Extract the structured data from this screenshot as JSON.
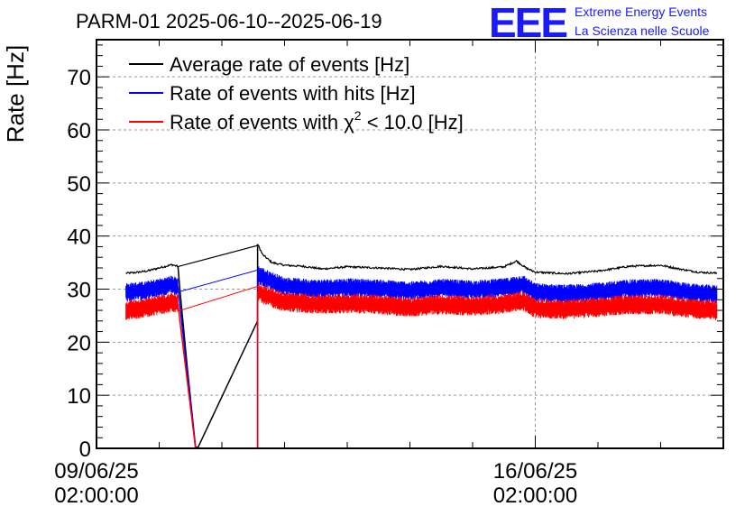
{
  "chart_data": {
    "type": "line",
    "title": "PARM-01 2025-06-10--2025-06-19",
    "xlabel": "",
    "ylabel": "Rate [Hz]",
    "ylim": [
      0,
      77
    ],
    "yticks": [
      0,
      10,
      20,
      30,
      40,
      50,
      60,
      70
    ],
    "ytick_labels": [
      "0",
      "10",
      "20",
      "30",
      "40",
      "50",
      "60",
      "70"
    ],
    "xlim_days": [
      0,
      10
    ],
    "xticks": [
      {
        "day": 0,
        "date": "09/06/25",
        "time": "02:00:00"
      },
      {
        "day": 7,
        "date": "16/06/25",
        "time": "02:00:00"
      }
    ],
    "grid": true,
    "legend_position": "top-left",
    "series": [
      {
        "name": "Average rate of events [Hz]",
        "color": "#000000",
        "style": "smooth",
        "points": [
          [
            0.47,
            33.0
          ],
          [
            0.6,
            33.1
          ],
          [
            0.8,
            33.4
          ],
          [
            1.0,
            34.0
          ],
          [
            1.2,
            34.6
          ],
          [
            1.3,
            34.3
          ],
          [
            1.33,
            30.0
          ],
          [
            1.45,
            15.0
          ],
          [
            1.58,
            0.2
          ],
          [
            1.62,
            0.2
          ],
          [
            2.57,
            24.0
          ],
          [
            2.57,
            38.5
          ],
          [
            2.65,
            36.5
          ],
          [
            2.8,
            35.0
          ],
          [
            3.0,
            34.5
          ],
          [
            3.3,
            34.3
          ],
          [
            3.6,
            33.8
          ],
          [
            4.0,
            34.2
          ],
          [
            4.5,
            34.0
          ],
          [
            5.0,
            33.7
          ],
          [
            5.5,
            34.3
          ],
          [
            6.0,
            33.8
          ],
          [
            6.5,
            34.2
          ],
          [
            6.7,
            35.3
          ],
          [
            6.85,
            34.0
          ],
          [
            7.0,
            33.2
          ],
          [
            7.5,
            32.9
          ],
          [
            8.0,
            33.4
          ],
          [
            8.5,
            34.3
          ],
          [
            9.0,
            34.5
          ],
          [
            9.3,
            33.8
          ],
          [
            9.6,
            33.2
          ],
          [
            9.9,
            33.0
          ]
        ]
      },
      {
        "name": "Rate of events with hits [Hz]",
        "color": "#0000ff",
        "style": "band",
        "points": [
          [
            0.47,
            29.4
          ],
          [
            0.8,
            29.8
          ],
          [
            1.0,
            30.3
          ],
          [
            1.2,
            30.8
          ],
          [
            1.3,
            30.5
          ],
          [
            1.33,
            27.0
          ],
          [
            1.58,
            0.0
          ],
          [
            2.57,
            0.0
          ],
          [
            2.57,
            32.8
          ],
          [
            2.7,
            32.0
          ],
          [
            3.0,
            30.5
          ],
          [
            3.5,
            30.1
          ],
          [
            4.0,
            30.3
          ],
          [
            4.5,
            30.1
          ],
          [
            5.0,
            29.7
          ],
          [
            5.5,
            30.2
          ],
          [
            6.0,
            29.9
          ],
          [
            6.5,
            30.3
          ],
          [
            6.8,
            31.0
          ],
          [
            7.0,
            29.4
          ],
          [
            7.5,
            29.1
          ],
          [
            8.0,
            29.5
          ],
          [
            8.5,
            30.1
          ],
          [
            9.0,
            30.2
          ],
          [
            9.5,
            29.3
          ],
          [
            9.9,
            29.0
          ]
        ],
        "band_half_width": 1.6
      },
      {
        "name": "Rate of events with χ² < 10.0 [Hz]",
        "color": "#ff0000",
        "style": "band",
        "points": [
          [
            0.47,
            26.0
          ],
          [
            0.8,
            26.5
          ],
          [
            1.0,
            27.0
          ],
          [
            1.2,
            27.5
          ],
          [
            1.3,
            27.2
          ],
          [
            1.33,
            24.0
          ],
          [
            1.58,
            0.0
          ],
          [
            2.57,
            0.0
          ],
          [
            2.57,
            29.5
          ],
          [
            2.7,
            28.8
          ],
          [
            3.0,
            27.6
          ],
          [
            3.5,
            27.2
          ],
          [
            4.0,
            27.3
          ],
          [
            4.5,
            27.1
          ],
          [
            5.0,
            26.6
          ],
          [
            5.5,
            27.1
          ],
          [
            6.0,
            26.8
          ],
          [
            6.5,
            27.2
          ],
          [
            6.8,
            27.8
          ],
          [
            7.0,
            26.4
          ],
          [
            7.5,
            26.2
          ],
          [
            8.0,
            26.6
          ],
          [
            8.5,
            27.1
          ],
          [
            9.0,
            27.1
          ],
          [
            9.5,
            26.3
          ],
          [
            9.9,
            26.0
          ]
        ],
        "band_half_width": 1.7
      }
    ]
  },
  "legend": {
    "items": [
      {
        "label": "Average rate of events [Hz]",
        "color": "#000000"
      },
      {
        "label": "Rate of events with hits [Hz]",
        "color": "#0000ff"
      },
      {
        "label_prefix": "Rate of events with ",
        "chi": "χ",
        "sup": "2",
        "label_suffix": " < 10.0 [Hz]",
        "color": "#ff0000"
      }
    ]
  },
  "logo": {
    "letters": "EEE",
    "line1": "Extreme Energy Events",
    "line2": "La Scienza nelle Scuole",
    "color": "#1a1aff"
  }
}
